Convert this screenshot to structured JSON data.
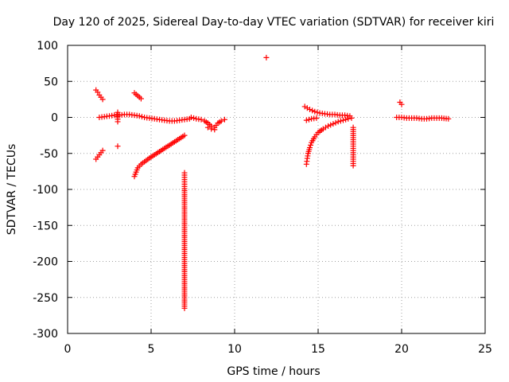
{
  "chart_data": {
    "type": "scatter",
    "title": "Day 120 of 2025, Sidereal Day-to-day VTEC variation (SDTVAR) for receiver kiri",
    "xlabel": "GPS time / hours",
    "ylabel": "SDTVAR / TECUs",
    "xlim": [
      0,
      25
    ],
    "ylim": [
      -300,
      100
    ],
    "xticks": [
      0,
      5,
      10,
      15,
      20,
      25
    ],
    "yticks": [
      -300,
      -250,
      -200,
      -150,
      -100,
      -50,
      0,
      50,
      100
    ],
    "grid": true,
    "marker": "+",
    "color": "#ff0000",
    "series": [
      {
        "name": "SDTVAR",
        "segments": [
          {
            "x": [
              1.7,
              1.8,
              1.9,
              2.0,
              2.1
            ],
            "y": [
              38,
              35,
              31,
              28,
              25
            ]
          },
          {
            "x": [
              1.7,
              1.8,
              1.9,
              2.0,
              2.1
            ],
            "y": [
              -58,
              -55,
              -52,
              -49,
              -46
            ]
          },
          {
            "x": [
              1.9,
              2.2,
              2.5,
              2.8,
              3.1,
              3.4,
              3.7,
              4.0,
              4.3,
              4.6,
              4.9,
              5.2,
              5.5,
              5.8,
              6.1,
              6.4,
              6.7,
              7.0,
              7.3
            ],
            "y": [
              0,
              1,
              2,
              3,
              3,
              4,
              4,
              3,
              2,
              0,
              -1,
              -2,
              -3,
              -4,
              -5,
              -5,
              -4,
              -3,
              -2
            ]
          },
          {
            "x": [
              4.0,
              4.1,
              4.2,
              4.3,
              4.4
            ],
            "y": [
              34,
              32,
              30,
              28,
              26
            ]
          },
          {
            "x": [
              3.0,
              3.0,
              3.0
            ],
            "y": [
              7,
              1,
              -6
            ]
          },
          {
            "x": [
              3.0
            ],
            "y": [
              -40
            ]
          },
          {
            "x": [
              4.0,
              4.1,
              4.2,
              4.4,
              4.7,
              5.0,
              5.4,
              5.8,
              6.2,
              6.6,
              7.0
            ],
            "y": [
              -82,
              -76,
              -70,
              -65,
              -60,
              -55,
              -49,
              -43,
              -37,
              -31,
              -25
            ]
          },
          {
            "x": [
              7.0,
              7.0,
              7.0,
              7.0,
              7.0
            ],
            "y": [
              -77,
              -99,
              -203,
              -262,
              -265
            ]
          },
          {
            "x": [
              7.4,
              7.7,
              8.0,
              8.2,
              8.4,
              8.6,
              8.8,
              9.0,
              9.2,
              9.4
            ],
            "y": [
              0,
              -2,
              -3,
              -5,
              -8,
              -12,
              -14,
              -8,
              -5,
              -3
            ]
          },
          {
            "x": [
              8.4,
              8.6,
              8.8
            ],
            "y": [
              -14,
              -16,
              -17
            ]
          },
          {
            "x": [
              11.9
            ],
            "y": [
              83
            ]
          },
          {
            "x": [
              14.2,
              14.5,
              14.8,
              15.1,
              15.4,
              15.7,
              16.0,
              16.3,
              16.6,
              16.9
            ],
            "y": [
              15,
              11,
              8,
              6,
              5,
              4,
              4,
              3,
              3,
              2
            ]
          },
          {
            "x": [
              14.3,
              14.6,
              14.9
            ],
            "y": [
              -4,
              -2,
              -1
            ]
          },
          {
            "x": [
              14.3,
              14.35,
              14.4,
              14.5,
              14.6,
              14.8,
              15.0,
              15.3,
              15.6,
              15.9,
              16.2,
              16.5,
              16.8,
              17.0
            ],
            "y": [
              -65,
              -57,
              -50,
              -42,
              -35,
              -27,
              -21,
              -16,
              -12,
              -9,
              -6,
              -4,
              -2,
              -1
            ]
          },
          {
            "x": [
              17.1,
              17.1,
              17.1,
              17.1
            ],
            "y": [
              -14,
              -31,
              -64,
              -67
            ]
          },
          {
            "x": [
              19.9,
              20.0
            ],
            "y": [
              21,
              18
            ]
          },
          {
            "x": [
              19.7,
              20.0,
              20.3,
              20.6,
              20.9,
              21.2,
              21.5,
              21.8,
              22.1,
              22.4,
              22.8
            ],
            "y": [
              0,
              0,
              -1,
              -1,
              -1,
              -2,
              -2,
              -1,
              -1,
              -1,
              -2
            ]
          }
        ]
      }
    ]
  }
}
